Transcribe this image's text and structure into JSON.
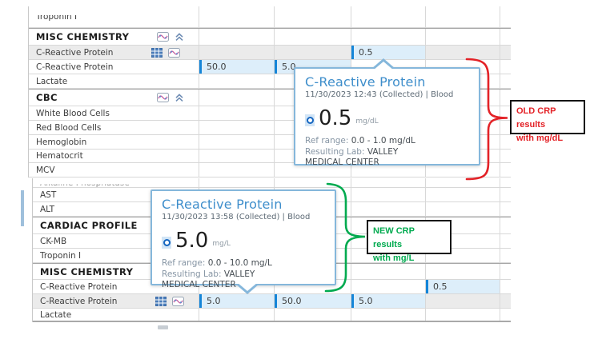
{
  "tables": {
    "top": {
      "rows": [
        {
          "label": "Troponin I",
          "kind": "item",
          "clip": "top"
        },
        {
          "label": "MISC CHEMISTRY",
          "kind": "header",
          "icons": [
            "trend-chart-icon",
            "collapse-icon"
          ]
        },
        {
          "label": "C-Reactive Protein",
          "kind": "item",
          "selected": true,
          "icons": [
            "table-icon",
            "trend-chart-icon"
          ],
          "values": {
            "3": "0.5"
          }
        },
        {
          "label": "C-Reactive Protein",
          "kind": "item",
          "values": {
            "1": "50.0",
            "2": "5.0"
          }
        },
        {
          "label": "Lactate",
          "kind": "item"
        },
        {
          "label": "CBC",
          "kind": "header",
          "icons": [
            "trend-chart-icon",
            "collapse-icon"
          ]
        },
        {
          "label": "White Blood Cells",
          "kind": "item"
        },
        {
          "label": "Red Blood Cells",
          "kind": "item"
        },
        {
          "label": "Hemoglobin",
          "kind": "item"
        },
        {
          "label": "Hematocrit",
          "kind": "item"
        },
        {
          "label": "MCV",
          "kind": "item"
        }
      ]
    },
    "bottom": {
      "rows": [
        {
          "label": "Alkaline Phosphatase",
          "kind": "item",
          "clip": "bottom"
        },
        {
          "label": "AST",
          "kind": "item"
        },
        {
          "label": "ALT",
          "kind": "item"
        },
        {
          "label": "CARDIAC PROFILE",
          "kind": "header",
          "icons": [
            "trend-chart-icon",
            "collapse-icon"
          ]
        },
        {
          "label": "CK-MB",
          "kind": "item"
        },
        {
          "label": "Troponin I",
          "kind": "item"
        },
        {
          "label": "MISC CHEMISTRY",
          "kind": "header",
          "icons": [
            "trend-chart-icon",
            "collapse-icon"
          ]
        },
        {
          "label": "C-Reactive Protein",
          "kind": "item",
          "values": {
            "4": "0.5"
          }
        },
        {
          "label": "C-Reactive Protein",
          "kind": "item",
          "selected": true,
          "icons": [
            "table-icon",
            "trend-chart-icon"
          ],
          "values": {
            "1": "5.0",
            "2": "50.0",
            "3": "5.0"
          }
        },
        {
          "label": "Lactate",
          "kind": "item",
          "thickend": true
        }
      ]
    }
  },
  "popups": [
    {
      "title": "C-Reactive Protein",
      "datetime": "11/30/2023 12:43 (Collected) | Blood",
      "value": "0.5",
      "unit": "mg/dL",
      "ref_label": "Ref range:",
      "ref_value": "0.0 - 1.0 mg/dL",
      "lab_label": "Resulting Lab:",
      "lab_value": "VALLEY MEDICAL CENTER"
    },
    {
      "title": "C-Reactive Protein",
      "datetime": "11/30/2023 13:58 (Collected) | Blood",
      "value": "5.0",
      "unit": "mg/L",
      "ref_label": "Ref range:",
      "ref_value": "0.0 - 10.0 mg/L",
      "lab_label": "Resulting Lab:",
      "lab_value": "VALLEY MEDICAL CENTER"
    }
  ],
  "annotations": [
    {
      "line1": "OLD CRP results",
      "line2": "with mg/dL",
      "color": "#e32227"
    },
    {
      "line1": "NEW CRP results",
      "line2": "with mg/L",
      "color": "#00aa4f"
    }
  ]
}
